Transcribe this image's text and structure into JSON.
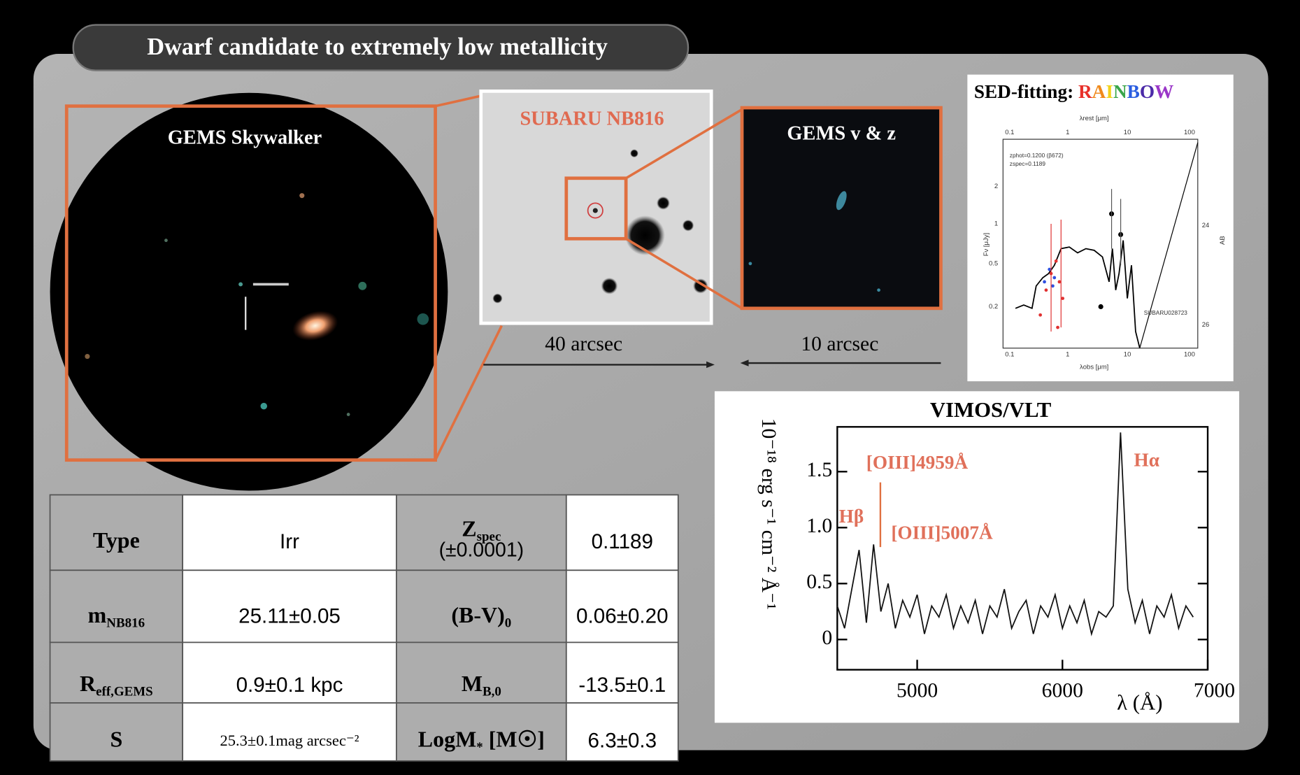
{
  "title": "Dwarf candidate to extremely low metallicity",
  "images": {
    "skywalker": "GEMS Skywalker",
    "subaru": "SUBARU NB816",
    "gems_vz": "GEMS v & z",
    "scale_subaru": "40 arcsec",
    "scale_gems": "10 arcsec"
  },
  "sed": {
    "title": "SED-fitting: ",
    "title_highlight": "RAINBOW",
    "highlight_colors": [
      "#e8302a",
      "#f08a1c",
      "#f2d21a",
      "#3aa64a",
      "#2a5de0",
      "#4b2aa8",
      "#9a36c8"
    ],
    "top_axis_label": "λrest [μm]",
    "bottom_axis_label": "λobs [μm]",
    "left_axis_label": "Fν [μJy]",
    "right_axis_label": "AB",
    "top_ticks": [
      "0.1",
      "1",
      "10",
      "100"
    ],
    "bottom_ticks": [
      "0.1",
      "1",
      "10",
      "100"
    ],
    "left_ticks": [
      "0.2",
      "0.5",
      "1",
      "2"
    ],
    "right_ticks": [
      "24",
      "26"
    ],
    "legend": [
      "zphot=0.1200 (β672)",
      "zspec=0.1189"
    ],
    "id": "SUBARU028723"
  },
  "spectrum": {
    "title": "VIMOS/VLT",
    "y_label": "10⁻¹⁸ erg s⁻¹ cm⁻² Å⁻¹",
    "x_label": "λ (Å)",
    "x": [
      4450,
      4500,
      4550,
      4600,
      4650,
      4700,
      4750,
      4800,
      4850,
      4900,
      4950,
      5000,
      5050,
      5100,
      5150,
      5200,
      5250,
      5300,
      5350,
      5400,
      5450,
      5500,
      5550,
      5600,
      5650,
      5700,
      5750,
      5800,
      5850,
      5900,
      5950,
      6000,
      6050,
      6100,
      6150,
      6200,
      6250,
      6300,
      6350,
      6400,
      6450,
      6500,
      6550,
      6600,
      6650,
      6700,
      6750,
      6800,
      6850,
      6900
    ],
    "values": [
      0.3,
      0.1,
      0.45,
      0.8,
      0.15,
      0.85,
      0.25,
      0.5,
      0.1,
      0.35,
      0.2,
      0.4,
      0.05,
      0.3,
      0.2,
      0.4,
      0.1,
      0.3,
      0.15,
      0.35,
      0.05,
      0.3,
      0.2,
      0.45,
      0.1,
      0.25,
      0.35,
      0.05,
      0.3,
      0.2,
      0.4,
      0.1,
      0.3,
      0.15,
      0.35,
      0.05,
      0.25,
      0.2,
      0.3,
      1.85,
      0.45,
      0.15,
      0.35,
      0.05,
      0.3,
      0.2,
      0.4,
      0.1,
      0.3,
      0.2
    ],
    "xlim": [
      4450,
      7000
    ],
    "ylim": [
      -0.27,
      1.9
    ],
    "xticks": [
      5000,
      6000,
      7000
    ],
    "yticks": [
      0,
      0.5,
      {
        "value": 1,
        "label": "1.0"
      },
      1.5
    ],
    "color": "#111111",
    "annotations": [
      "[OIII]4959Å",
      "Hβ",
      "[OIII]5007Å",
      "Hα"
    ]
  },
  "table": {
    "rows": [
      [
        {
          "main": "Type"
        },
        "Irr",
        {
          "main": "Z",
          "sub": "spec",
          "note": "(±0.0001)"
        },
        "0.1189"
      ],
      [
        {
          "main": "m",
          "sub": "NB816"
        },
        "25.11±0.05",
        {
          "main": "(B-V)",
          "sub": "0"
        },
        "0.06±0.20"
      ],
      [
        {
          "main": "R",
          "sub": "eff,GEMS"
        },
        "0.9±0.1 kpc",
        {
          "main": "M",
          "sub": "B,0"
        },
        "-13.5±0.1"
      ],
      [
        {
          "main": "S"
        },
        "25.3±0.1mag arcsec⁻²",
        {
          "main": "LogM",
          "sub": "*",
          "rest": " [M☉]"
        },
        "6.3±0.3"
      ]
    ]
  }
}
